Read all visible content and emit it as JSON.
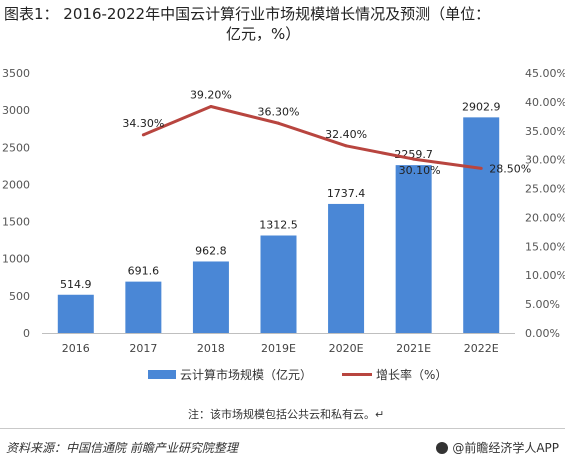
{
  "title": {
    "line1": "图表1： 2016-2022年中国云计算行业市场规模增长情况及预测（单位：",
    "line2": "亿元，%）"
  },
  "chart_data": {
    "type": "bar+line",
    "categories": [
      "2016",
      "2017",
      "2018",
      "2019E",
      "2020E",
      "2021E",
      "2022E"
    ],
    "series": [
      {
        "name": "云计算市场规模（亿元）",
        "type": "bar",
        "axis": "left",
        "values": [
          514.9,
          691.6,
          962.8,
          1312.5,
          1737.4,
          2259.7,
          2902.9
        ],
        "labels": [
          "514.9",
          "691.6",
          "962.8",
          "1312.5",
          "1737.4",
          "2259.7",
          "2902.9"
        ]
      },
      {
        "name": "增长率（%）",
        "type": "line",
        "axis": "right",
        "values": [
          null,
          34.3,
          39.2,
          36.3,
          32.4,
          30.1,
          28.5
        ],
        "labels": [
          "",
          "34.30%",
          "39.20%",
          "36.30%",
          "32.40%",
          "30.10%",
          "28.50%"
        ]
      }
    ],
    "y_left": {
      "min": 0,
      "max": 3500,
      "ticks": [
        "0",
        "500",
        "1000",
        "1500",
        "2000",
        "2500",
        "3000",
        "3500"
      ]
    },
    "y_right": {
      "min": 0,
      "max": 45,
      "ticks": [
        "0.00%",
        "5.00%",
        "10.00%",
        "15.00%",
        "20.00%",
        "25.00%",
        "30.00%",
        "35.00%",
        "40.00%",
        "45.00%"
      ]
    },
    "colors": {
      "bar": "#4a87d6",
      "line": "#b8453f"
    },
    "legend_position": "bottom",
    "grid": false
  },
  "legend": {
    "bar_label": "云计算市场规模（亿元）",
    "line_label": "增长率（%）"
  },
  "note": "注：该市场规模包括公共云和私有云。↵",
  "footer": {
    "source": "资料来源：中国信通院 前瞻产业研究院整理",
    "brand": "@前瞻经济学人APP"
  }
}
